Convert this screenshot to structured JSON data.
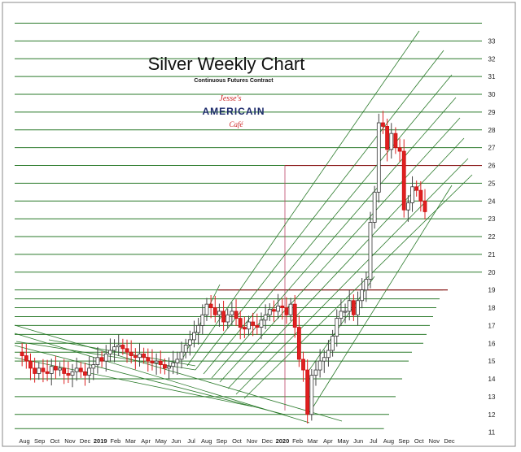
{
  "chart_data": {
    "type": "candlestick",
    "title": "Silver Weekly Chart",
    "subtitle": "Continuous Futures Contract",
    "logo": {
      "top": "Jesse's",
      "middle": "AMERICAIN",
      "bottom": "Café"
    },
    "y_ticks": [
      11,
      12,
      13,
      14,
      15,
      16,
      17,
      18,
      19,
      20,
      21,
      22,
      23,
      24,
      25,
      26,
      27,
      28,
      29,
      30,
      31,
      32,
      33
    ],
    "ylim": [
      10.8,
      34.3
    ],
    "x_ticks": [
      {
        "label": "Aug",
        "bold": false
      },
      {
        "label": "Sep",
        "bold": false
      },
      {
        "label": "Oct",
        "bold": false
      },
      {
        "label": "Nov",
        "bold": false
      },
      {
        "label": "Dec",
        "bold": false
      },
      {
        "label": "2019",
        "bold": true
      },
      {
        "label": "Feb",
        "bold": false
      },
      {
        "label": "Mar",
        "bold": false
      },
      {
        "label": "Apr",
        "bold": false
      },
      {
        "label": "May",
        "bold": false
      },
      {
        "label": "Jun",
        "bold": false
      },
      {
        "label": "Jul",
        "bold": false
      },
      {
        "label": "Aug",
        "bold": false
      },
      {
        "label": "Sep",
        "bold": false
      },
      {
        "label": "Oct",
        "bold": false
      },
      {
        "label": "Nov",
        "bold": false
      },
      {
        "label": "Dec",
        "bold": false
      },
      {
        "label": "2020",
        "bold": true
      },
      {
        "label": "Feb",
        "bold": false
      },
      {
        "label": "Mar",
        "bold": false
      },
      {
        "label": "Apr",
        "bold": false
      },
      {
        "label": "May",
        "bold": false
      },
      {
        "label": "Jun",
        "bold": false
      },
      {
        "label": "Jul",
        "bold": false
      },
      {
        "label": "Aug",
        "bold": false
      },
      {
        "label": "Sep",
        "bold": false
      },
      {
        "label": "Oct",
        "bold": false
      },
      {
        "label": "Nov",
        "bold": false
      },
      {
        "label": "Dec",
        "bold": false
      }
    ],
    "weekly_closes": [
      15.5,
      15.3,
      15.0,
      14.6,
      14.3,
      14.6,
      14.4,
      14.3,
      14.7,
      14.5,
      14.6,
      14.3,
      14.2,
      14.4,
      14.6,
      14.4,
      14.2,
      14.6,
      14.8,
      15.2,
      15.0,
      15.4,
      15.6,
      15.8,
      15.9,
      15.7,
      15.5,
      15.3,
      15.2,
      15.4,
      15.2,
      15.0,
      14.9,
      15.0,
      14.8,
      14.6,
      14.7,
      14.9,
      15.1,
      15.5,
      15.9,
      16.2,
      16.6,
      17.0,
      17.6,
      18.2,
      18.0,
      17.6,
      17.8,
      17.2,
      17.6,
      17.8,
      17.4,
      16.9,
      16.8,
      17.2,
      17.0,
      16.9,
      17.3,
      17.6,
      17.9,
      17.8,
      18.1,
      18.0,
      17.6,
      18.2,
      16.9,
      15.1,
      14.5,
      12.0,
      14.2,
      14.5,
      15.0,
      15.2,
      15.6,
      16.4,
      17.4,
      17.8,
      17.8,
      18.4,
      17.6,
      18.4,
      19.0,
      19.6,
      22.8,
      24.5,
      28.4,
      28.2,
      26.9,
      27.8,
      27.0,
      26.8,
      23.5,
      23.9,
      24.8,
      24.6,
      24.0,
      23.4
    ],
    "horizontal_levels_green": [
      11.2,
      12.0,
      13.0,
      14.0,
      15.0,
      15.5,
      16.0,
      16.5,
      17.0,
      17.5,
      18.0,
      18.5,
      19.0,
      20.0,
      21.0,
      22.0,
      23.0,
      24.0,
      25.0,
      26.0,
      27.0,
      28.0,
      29.0,
      30.0,
      31.0,
      32.0,
      33.0,
      34.0
    ],
    "resistance_lines_red": [
      26.0,
      19.0
    ],
    "colors": {
      "up": "#ffffff",
      "down": "#e02020",
      "green_line": "#2a7a2a",
      "red_line": "#8b1a1a",
      "text": "#222222"
    }
  }
}
